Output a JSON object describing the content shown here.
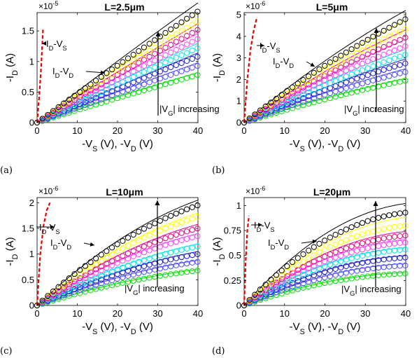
{
  "chart_data": [
    {
      "panel": "(a)",
      "type": "scatter",
      "title": "L=2.5μm",
      "multiplier": "×10",
      "multiplier_exp": "-5",
      "xlabel": "-V_S (V), -V_D (V)",
      "ylabel": "-I_D (A)",
      "xlim": [
        0,
        40
      ],
      "ylim": [
        0,
        1.8
      ],
      "xticks": [
        0,
        10,
        20,
        30,
        40
      ],
      "yticks": [
        0,
        0.5,
        1,
        1.5
      ],
      "ytick_labels": [
        "0",
        "0.5",
        "1",
        "1.5"
      ],
      "id_vs": {
        "label": "I_D-V_S",
        "x": [
          0,
          0.5,
          1.0,
          1.5
        ],
        "y": [
          0,
          0.4,
          0.9,
          1.55
        ]
      },
      "id_vd_label": "I_D-V_D",
      "arrow_label": "|V_G| increasing",
      "vd_max": [
        0.78,
        0.93,
        1.08,
        1.22,
        1.37,
        1.52,
        1.66,
        1.82
      ],
      "fit_max": [
        0.82,
        0.98,
        1.14,
        1.3,
        1.46,
        1.62,
        1.78,
        1.96
      ],
      "curve_k": 0.05
    },
    {
      "panel": "(b)",
      "type": "scatter",
      "title": "L=5μm",
      "multiplier": "×10",
      "multiplier_exp": "-6",
      "xlabel": "-V_S (V), -V_D (V)",
      "ylabel": "-I_D (A)",
      "xlim": [
        0,
        40
      ],
      "ylim": [
        0,
        5.1
      ],
      "xticks": [
        0,
        10,
        20,
        30,
        40
      ],
      "yticks": [
        0,
        1,
        2,
        3,
        4,
        5
      ],
      "ytick_labels": [
        "0",
        "1",
        "2",
        "3",
        "4",
        "5"
      ],
      "id_vs": {
        "label": "I_D-V_S",
        "x": [
          0,
          0.8,
          1.6,
          2.4,
          3.2
        ],
        "y": [
          0,
          2.0,
          3.4,
          4.3,
          4.9
        ]
      },
      "id_vd_label": "I_D-V_D",
      "arrow_label": "|V_G| increasing",
      "vd_max": [
        1.95,
        2.35,
        2.75,
        3.15,
        3.55,
        3.95,
        4.35,
        4.8
      ],
      "fit_max": [
        2.05,
        2.5,
        2.95,
        3.4,
        3.85,
        4.3,
        4.75,
        5.2
      ],
      "curve_k": 0.2
    },
    {
      "panel": "(c)",
      "type": "scatter",
      "title": "L=10μm",
      "multiplier": "×10",
      "multiplier_exp": "-6",
      "xlabel": "-V_S (V), -V_D (V)",
      "ylabel": "-I_D (A)",
      "xlim": [
        0,
        40
      ],
      "ylim": [
        0,
        2.1
      ],
      "xticks": [
        0,
        10,
        20,
        30,
        40
      ],
      "yticks": [
        0,
        0.5,
        1,
        1.5,
        2
      ],
      "ytick_labels": [
        "0",
        "0.5",
        "1",
        "1.5",
        "2"
      ],
      "id_vs": {
        "label": "I_D-V_S",
        "x": [
          0,
          0.8,
          1.6,
          2.4,
          3.2
        ],
        "y": [
          0,
          1.0,
          1.55,
          1.85,
          2.0
        ]
      },
      "id_vd_label": "I_D-V_D",
      "arrow_label": "|V_G| increasing",
      "vd_max": [
        0.68,
        0.85,
        1.0,
        1.15,
        1.35,
        1.5,
        1.72,
        1.95
      ],
      "fit_max": [
        0.7,
        0.88,
        1.05,
        1.2,
        1.4,
        1.58,
        1.8,
        2.05
      ],
      "curve_k": 0.45
    },
    {
      "panel": "(d)",
      "type": "scatter",
      "title": "L=20μm",
      "multiplier": "×10",
      "multiplier_exp": "-6",
      "xlabel": "-V_S (V), -V_D (V)",
      "ylabel": "-I_D (A)",
      "xlim": [
        0,
        40
      ],
      "ylim": [
        0,
        1.08
      ],
      "xticks": [
        0,
        10,
        20,
        30,
        40
      ],
      "yticks": [
        0,
        0.25,
        0.5,
        0.75,
        1
      ],
      "ytick_labels": [
        "0",
        "0.25",
        "0.5",
        "0.75",
        "1"
      ],
      "id_vs": {
        "label": "I_D-V_S",
        "x": [
          0,
          0.4,
          0.8,
          1.2
        ],
        "y": [
          0,
          0.45,
          0.75,
          0.9
        ]
      },
      "id_vd_label": "I_D-V_D",
      "arrow_label": "|V_G| increasing",
      "vd_max": [
        0.32,
        0.4,
        0.48,
        0.56,
        0.63,
        0.7,
        0.8,
        0.93
      ],
      "fit_max": [
        0.33,
        0.42,
        0.5,
        0.58,
        0.66,
        0.74,
        0.88,
        1.02
      ],
      "curve_k": 0.8
    }
  ],
  "series_colors": [
    "#00e000",
    "#5050ff",
    "#1a1ad0",
    "#00e5e5",
    "#ff40ff",
    "#e80080",
    "#ffff00",
    "#000000",
    "#e8a000"
  ],
  "id_vs_color": "#e60000"
}
